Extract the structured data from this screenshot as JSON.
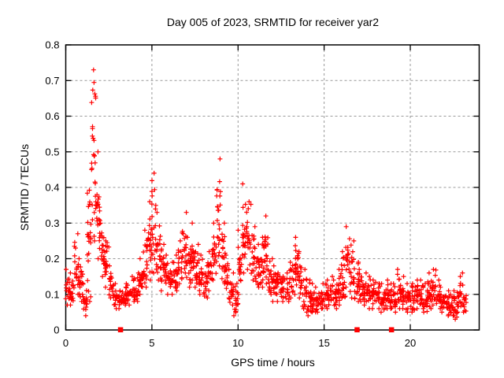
{
  "chart_data": {
    "type": "scatter",
    "title": "Day 005 of 2023, SRMTID for receiver yar2",
    "xlabel": "GPS time / hours",
    "ylabel": "SRMTID / TECUs",
    "xlim": [
      0,
      24
    ],
    "ylim": [
      0,
      0.8
    ],
    "x_ticks": {
      "values": [
        0,
        5,
        10,
        15,
        20
      ],
      "labels": [
        "0",
        "5",
        "10",
        "15",
        "20"
      ]
    },
    "y_ticks": {
      "values": [
        0,
        0.1,
        0.2,
        0.3,
        0.4,
        0.5,
        0.6,
        0.7,
        0.8
      ],
      "labels": [
        "0",
        "0.1",
        "0.2",
        "0.3",
        "0.4",
        "0.5",
        "0.6",
        "0.7",
        "0.8"
      ]
    },
    "grid": {
      "visible": true,
      "style": "dashed",
      "color": "#999999"
    },
    "legend": null,
    "series": [
      {
        "name": "SRMTID",
        "marker": "plus",
        "color": "#ff0000",
        "envelope_bins": [
          [
            0.125,
            0.07,
            0.17
          ],
          [
            0.375,
            0.07,
            0.16
          ],
          [
            0.625,
            0.1,
            0.27
          ],
          [
            0.875,
            0.08,
            0.2
          ],
          [
            1.125,
            0.04,
            0.13
          ],
          [
            1.375,
            0.08,
            0.45
          ],
          [
            1.625,
            0.25,
            0.73
          ],
          [
            1.875,
            0.2,
            0.5
          ],
          [
            2.125,
            0.15,
            0.3
          ],
          [
            2.375,
            0.12,
            0.25
          ],
          [
            2.625,
            0.09,
            0.18
          ],
          [
            2.875,
            0.06,
            0.13
          ],
          [
            3.125,
            0.06,
            0.11
          ],
          [
            3.375,
            0.07,
            0.12
          ],
          [
            3.625,
            0.07,
            0.13
          ],
          [
            3.875,
            0.08,
            0.15
          ],
          [
            4.125,
            0.08,
            0.16
          ],
          [
            4.375,
            0.1,
            0.2
          ],
          [
            4.625,
            0.12,
            0.28
          ],
          [
            4.875,
            0.14,
            0.36
          ],
          [
            5.125,
            0.16,
            0.44
          ],
          [
            5.375,
            0.14,
            0.33
          ],
          [
            5.625,
            0.11,
            0.24
          ],
          [
            5.875,
            0.1,
            0.21
          ],
          [
            6.125,
            0.1,
            0.19
          ],
          [
            6.375,
            0.11,
            0.21
          ],
          [
            6.625,
            0.13,
            0.25
          ],
          [
            6.875,
            0.16,
            0.33
          ],
          [
            7.125,
            0.12,
            0.26
          ],
          [
            7.375,
            0.14,
            0.3
          ],
          [
            7.625,
            0.12,
            0.24
          ],
          [
            7.875,
            0.1,
            0.21
          ],
          [
            8.125,
            0.09,
            0.18
          ],
          [
            8.375,
            0.11,
            0.22
          ],
          [
            8.625,
            0.14,
            0.3
          ],
          [
            8.875,
            0.18,
            0.48
          ],
          [
            9.125,
            0.13,
            0.3
          ],
          [
            9.375,
            0.09,
            0.21
          ],
          [
            9.625,
            0.07,
            0.16
          ],
          [
            9.875,
            0.04,
            0.13
          ],
          [
            10.125,
            0.1,
            0.28
          ],
          [
            10.375,
            0.16,
            0.41
          ],
          [
            10.625,
            0.17,
            0.36
          ],
          [
            10.875,
            0.14,
            0.29
          ],
          [
            11.125,
            0.12,
            0.24
          ],
          [
            11.375,
            0.12,
            0.26
          ],
          [
            11.625,
            0.13,
            0.32
          ],
          [
            11.875,
            0.1,
            0.2
          ],
          [
            12.125,
            0.08,
            0.18
          ],
          [
            12.375,
            0.08,
            0.16
          ],
          [
            12.625,
            0.08,
            0.15
          ],
          [
            12.875,
            0.08,
            0.16
          ],
          [
            13.125,
            0.09,
            0.19
          ],
          [
            13.375,
            0.1,
            0.26
          ],
          [
            13.625,
            0.09,
            0.22
          ],
          [
            13.875,
            0.05,
            0.17
          ],
          [
            14.125,
            0.04,
            0.14
          ],
          [
            14.375,
            0.05,
            0.13
          ],
          [
            14.625,
            0.05,
            0.12
          ],
          [
            14.875,
            0.06,
            0.13
          ],
          [
            15.125,
            0.06,
            0.14
          ],
          [
            15.375,
            0.07,
            0.15
          ],
          [
            15.625,
            0.06,
            0.14
          ],
          [
            15.875,
            0.07,
            0.17
          ],
          [
            16.125,
            0.09,
            0.22
          ],
          [
            16.375,
            0.12,
            0.29
          ],
          [
            16.625,
            0.09,
            0.25
          ],
          [
            16.875,
            0.08,
            0.19
          ],
          [
            17.125,
            0.08,
            0.17
          ],
          [
            17.375,
            0.07,
            0.16
          ],
          [
            17.625,
            0.06,
            0.15
          ],
          [
            17.875,
            0.06,
            0.14
          ],
          [
            18.125,
            0.06,
            0.13
          ],
          [
            18.375,
            0.05,
            0.13
          ],
          [
            18.625,
            0.06,
            0.14
          ],
          [
            18.875,
            0.06,
            0.13
          ],
          [
            19.125,
            0.05,
            0.13
          ],
          [
            19.375,
            0.06,
            0.17
          ],
          [
            19.625,
            0.06,
            0.15
          ],
          [
            19.875,
            0.05,
            0.13
          ],
          [
            20.125,
            0.05,
            0.13
          ],
          [
            20.375,
            0.06,
            0.14
          ],
          [
            20.625,
            0.06,
            0.14
          ],
          [
            20.875,
            0.05,
            0.13
          ],
          [
            21.125,
            0.06,
            0.16
          ],
          [
            21.375,
            0.07,
            0.17
          ],
          [
            21.625,
            0.06,
            0.14
          ],
          [
            21.875,
            0.05,
            0.12
          ],
          [
            22.125,
            0.04,
            0.11
          ],
          [
            22.375,
            0.04,
            0.1
          ],
          [
            22.625,
            0.03,
            0.11
          ],
          [
            22.875,
            0.05,
            0.15
          ],
          [
            23.125,
            0.05,
            0.16
          ]
        ]
      }
    ],
    "axis_markers": {
      "marker": "square",
      "color": "#ff0000",
      "y": 0,
      "x": [
        3.17,
        16.9,
        18.9
      ]
    },
    "peaks": [
      {
        "x": 1.6,
        "y": 0.73
      },
      {
        "x": 5.2,
        "y": 0.44
      },
      {
        "x": 8.9,
        "y": 0.48
      },
      {
        "x": 10.4,
        "y": 0.41
      },
      {
        "x": 11.6,
        "y": 0.32
      },
      {
        "x": 16.4,
        "y": 0.29
      }
    ]
  }
}
